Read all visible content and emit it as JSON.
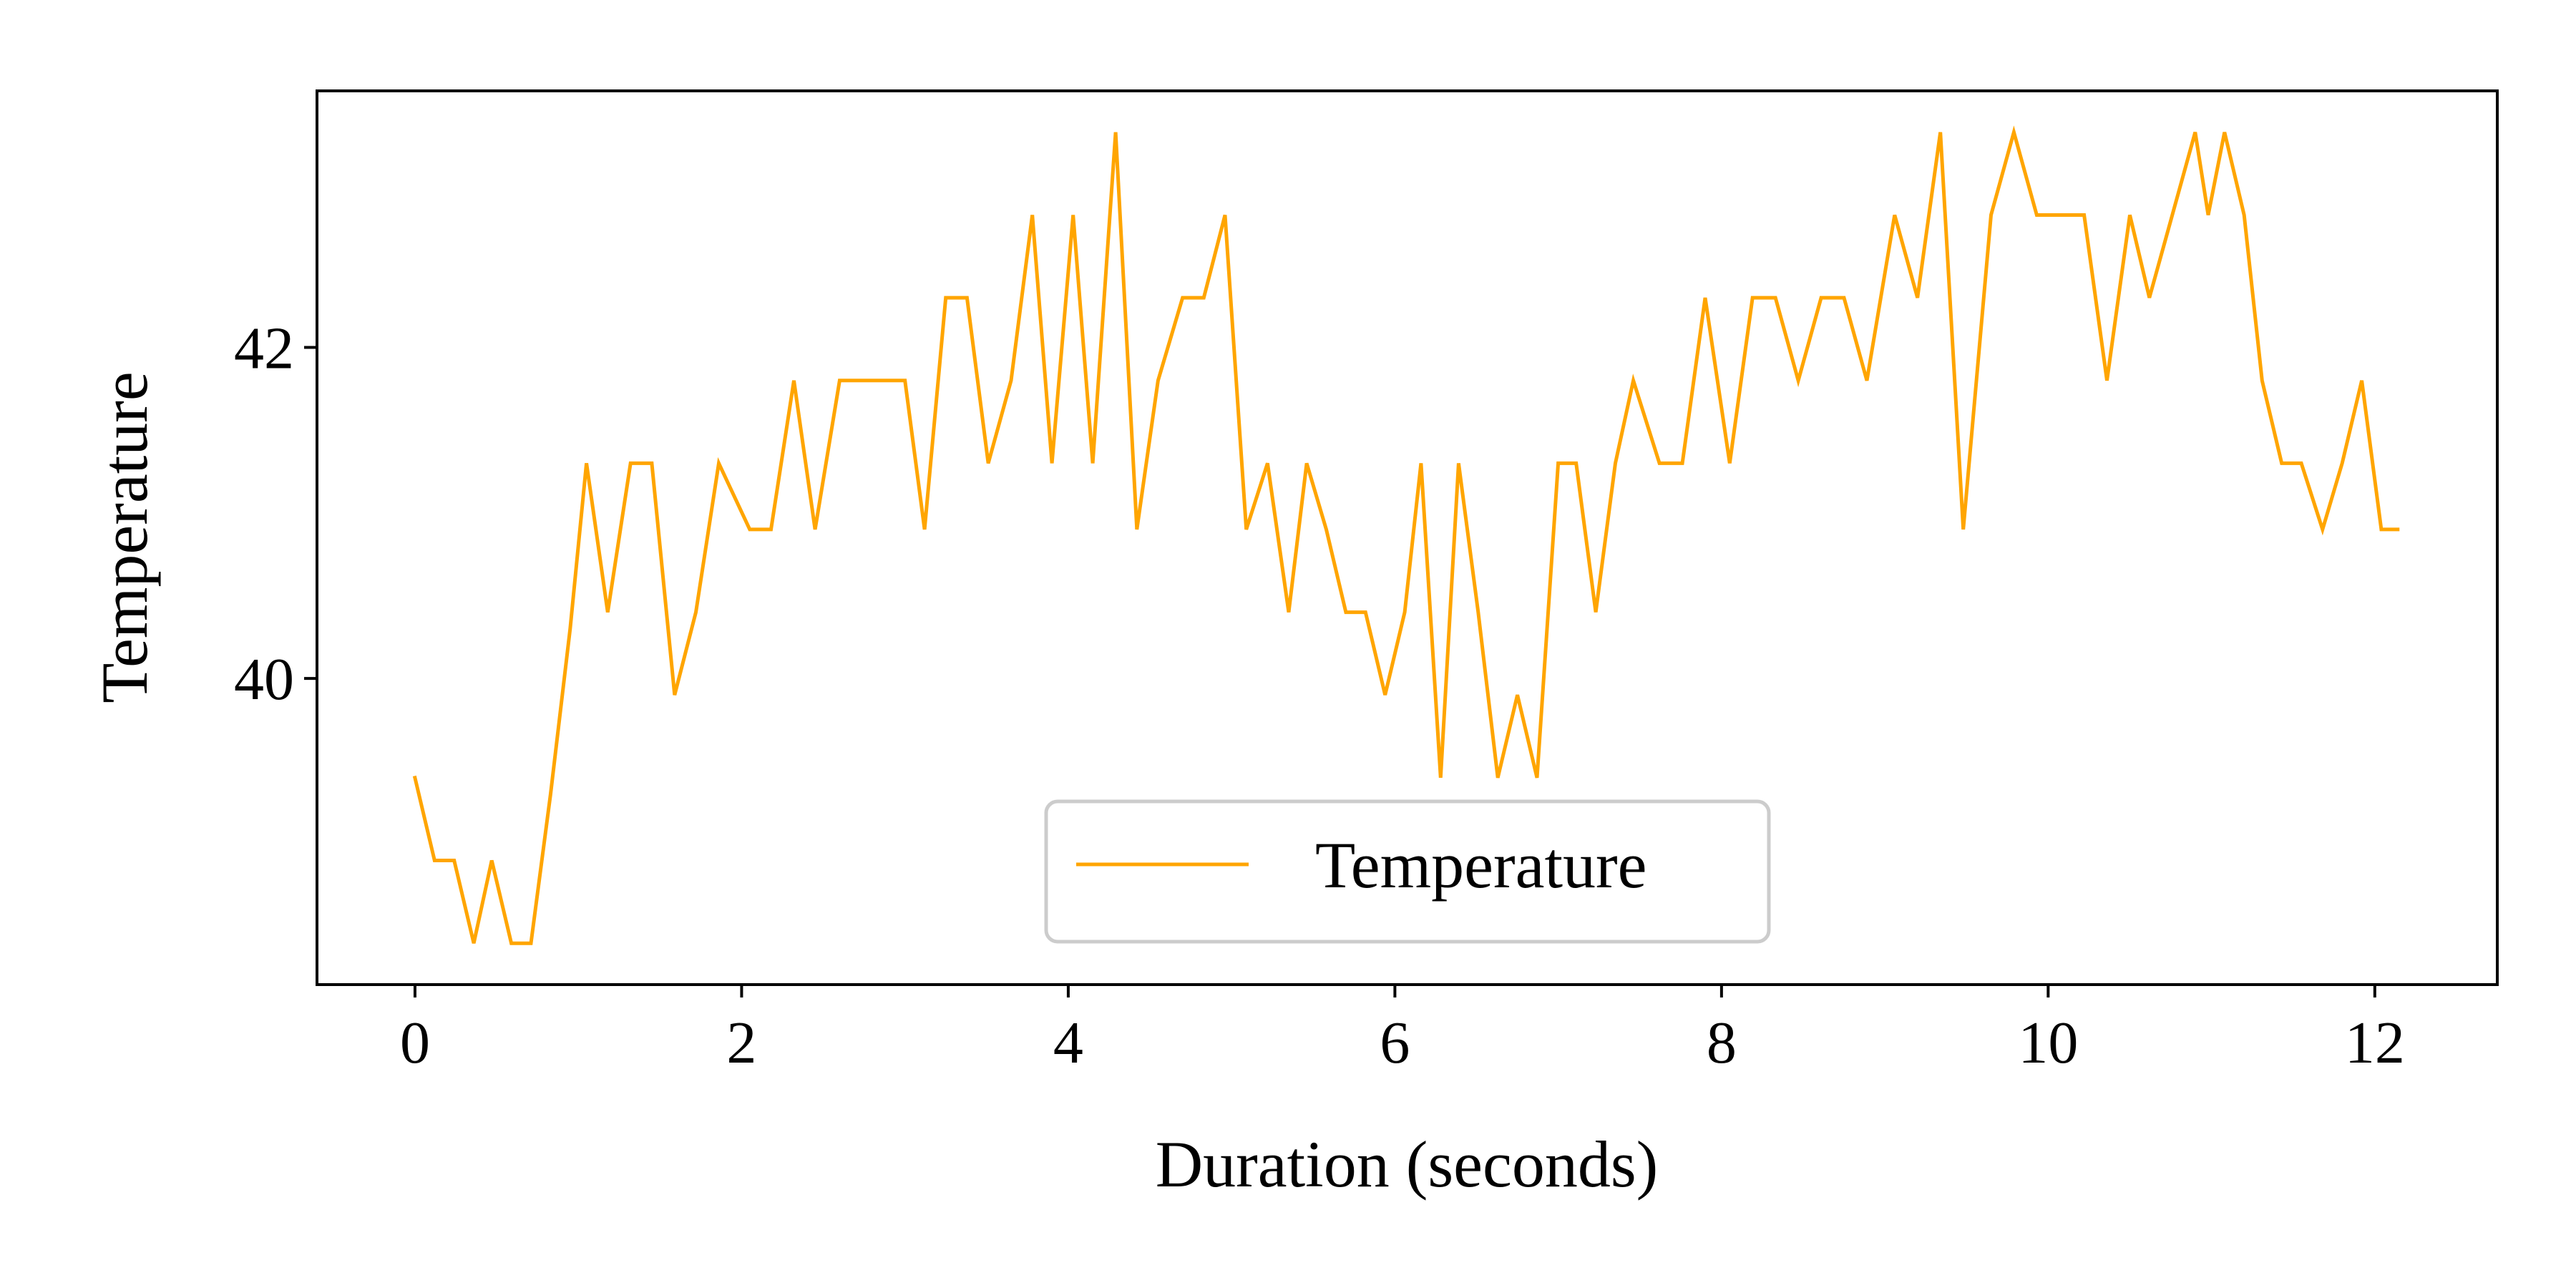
{
  "chart_data": {
    "type": "line",
    "title": "",
    "xlabel": "Duration (seconds)",
    "ylabel": "Temperature",
    "xlim": [
      -0.6,
      12.75
    ],
    "ylim": [
      38.15,
      43.55
    ],
    "xticks": [
      0,
      2,
      4,
      6,
      8,
      10,
      12
    ],
    "yticks": [
      40,
      42
    ],
    "grid": false,
    "legend": {
      "placement": "lower-center",
      "entries": [
        "Temperature"
      ]
    },
    "series": [
      {
        "name": "Temperature",
        "color": "#ffa500",
        "x": [
          0,
          0.12,
          0.24,
          0.36,
          0.47,
          0.59,
          0.71,
          0.83,
          0.95,
          1.05,
          1.18,
          1.32,
          1.45,
          1.59,
          1.72,
          1.86,
          2.05,
          2.18,
          2.32,
          2.45,
          2.6,
          2.73,
          2.87,
          3.0,
          3.12,
          3.25,
          3.38,
          3.51,
          3.65,
          3.78,
          3.9,
          4.03,
          4.15,
          4.29,
          4.42,
          4.55,
          4.7,
          4.83,
          4.96,
          5.09,
          5.22,
          5.35,
          5.46,
          5.58,
          5.7,
          5.82,
          5.94,
          6.06,
          6.16,
          6.28,
          6.39,
          6.51,
          6.63,
          6.75,
          6.87,
          7.0,
          7.11,
          7.23,
          7.35,
          7.46,
          7.62,
          7.76,
          7.9,
          8.05,
          8.19,
          8.33,
          8.47,
          8.61,
          8.75,
          8.89,
          9.06,
          9.2,
          9.34,
          9.48,
          9.65,
          9.79,
          9.93,
          10.08,
          10.22,
          10.36,
          10.5,
          10.62,
          10.76,
          10.9,
          10.98,
          11.08,
          11.2,
          11.31,
          11.43,
          11.55,
          11.68,
          11.8,
          11.92,
          12.04,
          12.14
        ],
        "y": [
          39.4,
          38.9,
          38.9,
          38.4,
          38.9,
          38.4,
          38.4,
          39.3,
          40.3,
          41.3,
          40.4,
          41.3,
          41.3,
          39.9,
          40.4,
          41.3,
          40.9,
          40.9,
          41.8,
          40.9,
          41.8,
          41.8,
          41.8,
          41.8,
          40.9,
          42.3,
          42.3,
          41.3,
          41.8,
          42.8,
          41.3,
          42.8,
          41.3,
          43.3,
          40.9,
          41.8,
          42.3,
          42.3,
          42.8,
          40.9,
          41.3,
          40.4,
          41.3,
          40.9,
          40.4,
          40.4,
          39.9,
          40.4,
          41.3,
          39.4,
          41.3,
          40.4,
          39.4,
          39.9,
          39.4,
          41.3,
          41.3,
          40.4,
          41.3,
          41.8,
          41.3,
          41.3,
          42.3,
          41.3,
          42.3,
          42.3,
          41.8,
          42.3,
          42.3,
          41.8,
          42.8,
          42.3,
          43.3,
          40.9,
          42.8,
          43.3,
          42.8,
          42.8,
          42.8,
          41.8,
          42.8,
          42.3,
          42.8,
          43.3,
          42.8,
          43.3,
          42.8,
          41.8,
          41.3,
          41.3,
          40.9,
          41.3,
          41.8,
          40.9,
          40.9
        ]
      }
    ]
  }
}
